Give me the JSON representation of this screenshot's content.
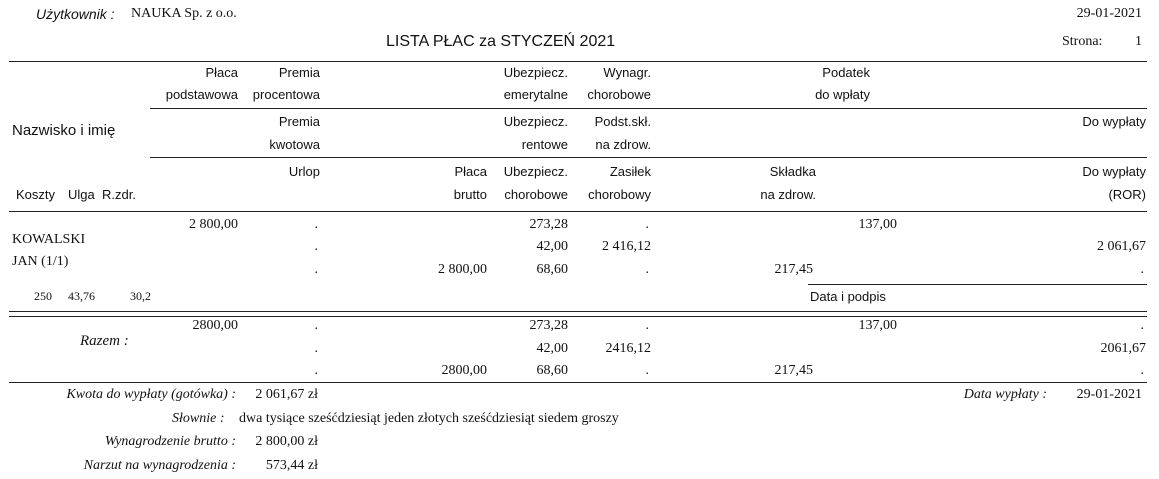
{
  "header": {
    "user_label": "Użytkownik :",
    "user_value": "NAUKA Sp. z o.o.",
    "date": "29-01-2021",
    "title": "LISTA PŁAC za STYCZEŃ 2021",
    "page_label": "Strona:",
    "page_number": "1"
  },
  "columns": {
    "name": "Nazwisko i imię",
    "koszty": "Koszty",
    "ulga": "Ulga",
    "rzdr": "R.zdr.",
    "placa_podst": [
      "Płaca",
      "podstawowa"
    ],
    "premia_proc": [
      "Premia",
      "procentowa"
    ],
    "premia_kwot": [
      "Premia",
      "kwotowa"
    ],
    "urlop": "Urlop",
    "placa_brutto": [
      "Płaca",
      "brutto"
    ],
    "ub_emer": [
      "Ubezpiecz.",
      "emerytalne"
    ],
    "ub_rent": [
      "Ubezpiecz.",
      "rentowe"
    ],
    "ub_chor": [
      "Ubezpiecz.",
      "chorobowe"
    ],
    "wyn_chor": [
      "Wynagr.",
      "chorobowe"
    ],
    "podst_skl": [
      "Podst.skł.",
      "na zdrow."
    ],
    "zasilek": [
      "Zasiłek",
      "chorobowy"
    ],
    "podatek": [
      "Podatek",
      "do wpłaty"
    ],
    "skladka": [
      "Składka",
      "na zdrow."
    ],
    "do_wyplaty": "Do wypłaty",
    "do_wyplaty_ror": [
      "Do wypłaty",
      "(ROR)"
    ]
  },
  "employee": {
    "surname": "KOWALSKI",
    "name": "JAN (1/1)",
    "koszty": "250",
    "ulga": "43,76",
    "rzdr": "30,2",
    "row1": {
      "placa_podst": "2 800,00",
      "premia_proc": ".",
      "ub_emer": "273,28",
      "wyn_chor": ".",
      "podatek": "137,00"
    },
    "row2": {
      "premia_kwot": ".",
      "ub_rent": "42,00",
      "podst_skl": "2 416,12",
      "do_wyplaty": "2 061,67"
    },
    "row3": {
      "urlop": ".",
      "placa_brutto": "2 800,00",
      "ub_chor": "68,60",
      "zasilek": ".",
      "skladka": "217,45",
      "do_wyplaty_ror": "."
    },
    "signature_label": "Data i podpis"
  },
  "totals": {
    "label": "Razem :",
    "row1": {
      "placa_podst": "2800,00",
      "premia_proc": ".",
      "ub_emer": "273,28",
      "wyn_chor": ".",
      "podatek": "137,00",
      "last": "."
    },
    "row2": {
      "premia_kwot": ".",
      "ub_rent": "42,00",
      "podst_skl": "2416,12",
      "do_wyplaty": "2061,67"
    },
    "row3": {
      "urlop": ".",
      "placa_brutto": "2800,00",
      "ub_chor": "68,60",
      "zasilek": ".",
      "skladka": "217,45",
      "do_wyplaty_ror": "."
    }
  },
  "summary": {
    "kwota_label": "Kwota do wypłaty (gotówka) :",
    "kwota_value": "2 061,67 zł",
    "data_wyplaty_label": "Data wypłaty :",
    "data_wyplaty_value": "29-01-2021",
    "slownie_label": "Słownie :",
    "slownie_value": "dwa tysiące sześćdziesiąt jeden złotych sześćdziesiąt siedem groszy",
    "brutto_label": "Wynagrodzenie brutto :",
    "brutto_value": "2 800,00 zł",
    "narzut_label": "Narzut na wynagrodzenia :",
    "narzut_value": "573,44 zł"
  }
}
